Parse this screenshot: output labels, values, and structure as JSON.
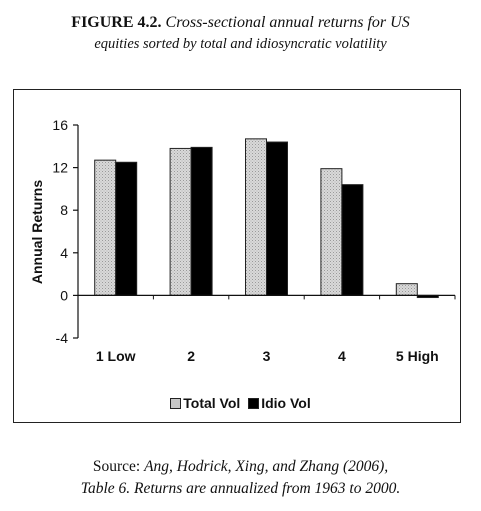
{
  "caption": {
    "figure_label": "FIGURE 4.2.",
    "title_line1": "Cross-sectional annual returns for US",
    "title_line2": "equities sorted by total and idiosyncratic volatility"
  },
  "chart_data": {
    "type": "bar",
    "categories": [
      "1 Low",
      "2",
      "3",
      "4",
      "5 High"
    ],
    "series": [
      {
        "name": "Total Vol",
        "values": [
          12.7,
          13.8,
          14.7,
          11.9,
          1.1
        ],
        "color": "#c8c8c8"
      },
      {
        "name": "Idio Vol",
        "values": [
          12.5,
          13.9,
          14.4,
          10.4,
          -0.2
        ],
        "color": "#000000"
      }
    ],
    "ylabel": "Annual Returns",
    "xlabel": "",
    "ylim": [
      -4,
      16
    ],
    "yticks": [
      -4,
      0,
      4,
      8,
      12,
      16
    ],
    "grid": false,
    "legend_position": "bottom"
  },
  "source": {
    "label": "Source:",
    "line1": "Ang, Hodrick, Xing, and Zhang (2006),",
    "line2": "Table 6. Returns are annualized from 1963 to 2000."
  }
}
